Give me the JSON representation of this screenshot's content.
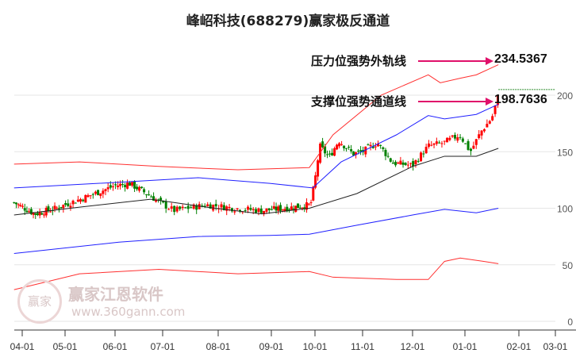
{
  "chart_data": {
    "type": "line",
    "title": "峰岹科技(688279)赢家极反通道",
    "x_unit": "months since 04-01",
    "x_ticks": [
      {
        "m": 0,
        "label": "04-01"
      },
      {
        "m": 1,
        "label": "05-01"
      },
      {
        "m": 2,
        "label": "06-01"
      },
      {
        "m": 3,
        "label": "07-01"
      },
      {
        "m": 4,
        "label": "08-01"
      },
      {
        "m": 5,
        "label": "09-01"
      },
      {
        "m": 6,
        "label": "10-01"
      },
      {
        "m": 7,
        "label": "11-01"
      },
      {
        "m": 8,
        "label": "12-01"
      },
      {
        "m": 9,
        "label": "01-01"
      },
      {
        "m": 10,
        "label": "02-01"
      },
      {
        "m": 11,
        "label": "03-01"
      }
    ],
    "y_ticks": [
      0,
      50,
      100,
      150,
      200
    ],
    "ylim": [
      0,
      230
    ],
    "grid": "horizontal",
    "series": [
      {
        "name": "upper-outer",
        "color": "#ff3030",
        "points": [
          [
            -0.19,
            139
          ],
          [
            1.29,
            141
          ],
          [
            2.92,
            137
          ],
          [
            4.37,
            134
          ],
          [
            5.87,
            136
          ],
          [
            6.38,
            165
          ],
          [
            7.37,
            200
          ],
          [
            8.3,
            218
          ],
          [
            8.53,
            211
          ],
          [
            8.91,
            215
          ],
          [
            9.21,
            218
          ],
          [
            9.62,
            227
          ]
        ]
      },
      {
        "name": "upper-channel",
        "color": "#2020ff",
        "points": [
          [
            -0.19,
            118
          ],
          [
            2.08,
            123
          ],
          [
            3.64,
            127
          ],
          [
            4.97,
            122
          ],
          [
            5.95,
            118
          ],
          [
            6.55,
            141
          ],
          [
            7.68,
            165
          ],
          [
            8.3,
            182
          ],
          [
            8.61,
            179
          ],
          [
            9.21,
            183
          ],
          [
            9.62,
            192
          ]
        ]
      },
      {
        "name": "moving-average",
        "color": "#222222",
        "points": [
          [
            -0.19,
            94
          ],
          [
            1.29,
            101
          ],
          [
            2.75,
            108
          ],
          [
            3.79,
            101
          ],
          [
            4.82,
            95
          ],
          [
            5.87,
            100
          ],
          [
            6.88,
            113
          ],
          [
            8.0,
            137
          ],
          [
            8.61,
            146
          ],
          [
            9.21,
            146
          ],
          [
            9.62,
            153
          ]
        ]
      },
      {
        "name": "lower-channel",
        "color": "#2020ff",
        "points": [
          [
            -0.19,
            60
          ],
          [
            2.08,
            70
          ],
          [
            3.64,
            75
          ],
          [
            4.97,
            76
          ],
          [
            5.87,
            77
          ],
          [
            6.88,
            85
          ],
          [
            8.0,
            94
          ],
          [
            8.61,
            99
          ],
          [
            9.21,
            96
          ],
          [
            9.62,
            100
          ]
        ]
      },
      {
        "name": "lower-outer",
        "color": "#ff3030",
        "points": [
          [
            -0.19,
            28
          ],
          [
            1.29,
            42
          ],
          [
            2.92,
            46
          ],
          [
            4.37,
            42
          ],
          [
            5.87,
            44
          ],
          [
            6.38,
            39
          ],
          [
            7.68,
            37
          ],
          [
            8.3,
            37
          ],
          [
            8.61,
            53
          ],
          [
            8.91,
            56
          ],
          [
            9.35,
            53
          ],
          [
            9.62,
            51
          ]
        ]
      }
    ],
    "price": [
      [
        -0.19,
        105
      ],
      [
        0.3,
        95
      ],
      [
        0.8,
        100
      ],
      [
        1.3,
        108
      ],
      [
        2.0,
        120
      ],
      [
        2.3,
        122
      ],
      [
        2.7,
        112
      ],
      [
        3.2,
        98
      ],
      [
        3.8,
        103
      ],
      [
        4.3,
        100
      ],
      [
        4.8,
        98
      ],
      [
        5.3,
        100
      ],
      [
        5.9,
        103
      ],
      [
        6.0,
        125
      ],
      [
        6.1,
        155
      ],
      [
        6.3,
        145
      ],
      [
        6.5,
        160
      ],
      [
        6.8,
        148
      ],
      [
        7.0,
        150
      ],
      [
        7.3,
        158
      ],
      [
        7.6,
        140
      ],
      [
        8.0,
        138
      ],
      [
        8.3,
        155
      ],
      [
        8.6,
        158
      ],
      [
        8.9,
        165
      ],
      [
        9.1,
        150
      ],
      [
        9.3,
        168
      ],
      [
        9.5,
        180
      ],
      [
        9.62,
        200
      ]
    ],
    "last_price": 205,
    "annotations": [
      {
        "label": "压力位强势外轨线",
        "value": "234.5367"
      },
      {
        "label": "支撑位强势通道线",
        "value": "198.7636"
      }
    ],
    "colors": {
      "up": "#ff0000",
      "down": "#008000",
      "arrow": "#e0106a"
    }
  },
  "watermark": {
    "name": "赢家江恩软件",
    "url": "www.360gann.com",
    "logo": "赢家"
  }
}
